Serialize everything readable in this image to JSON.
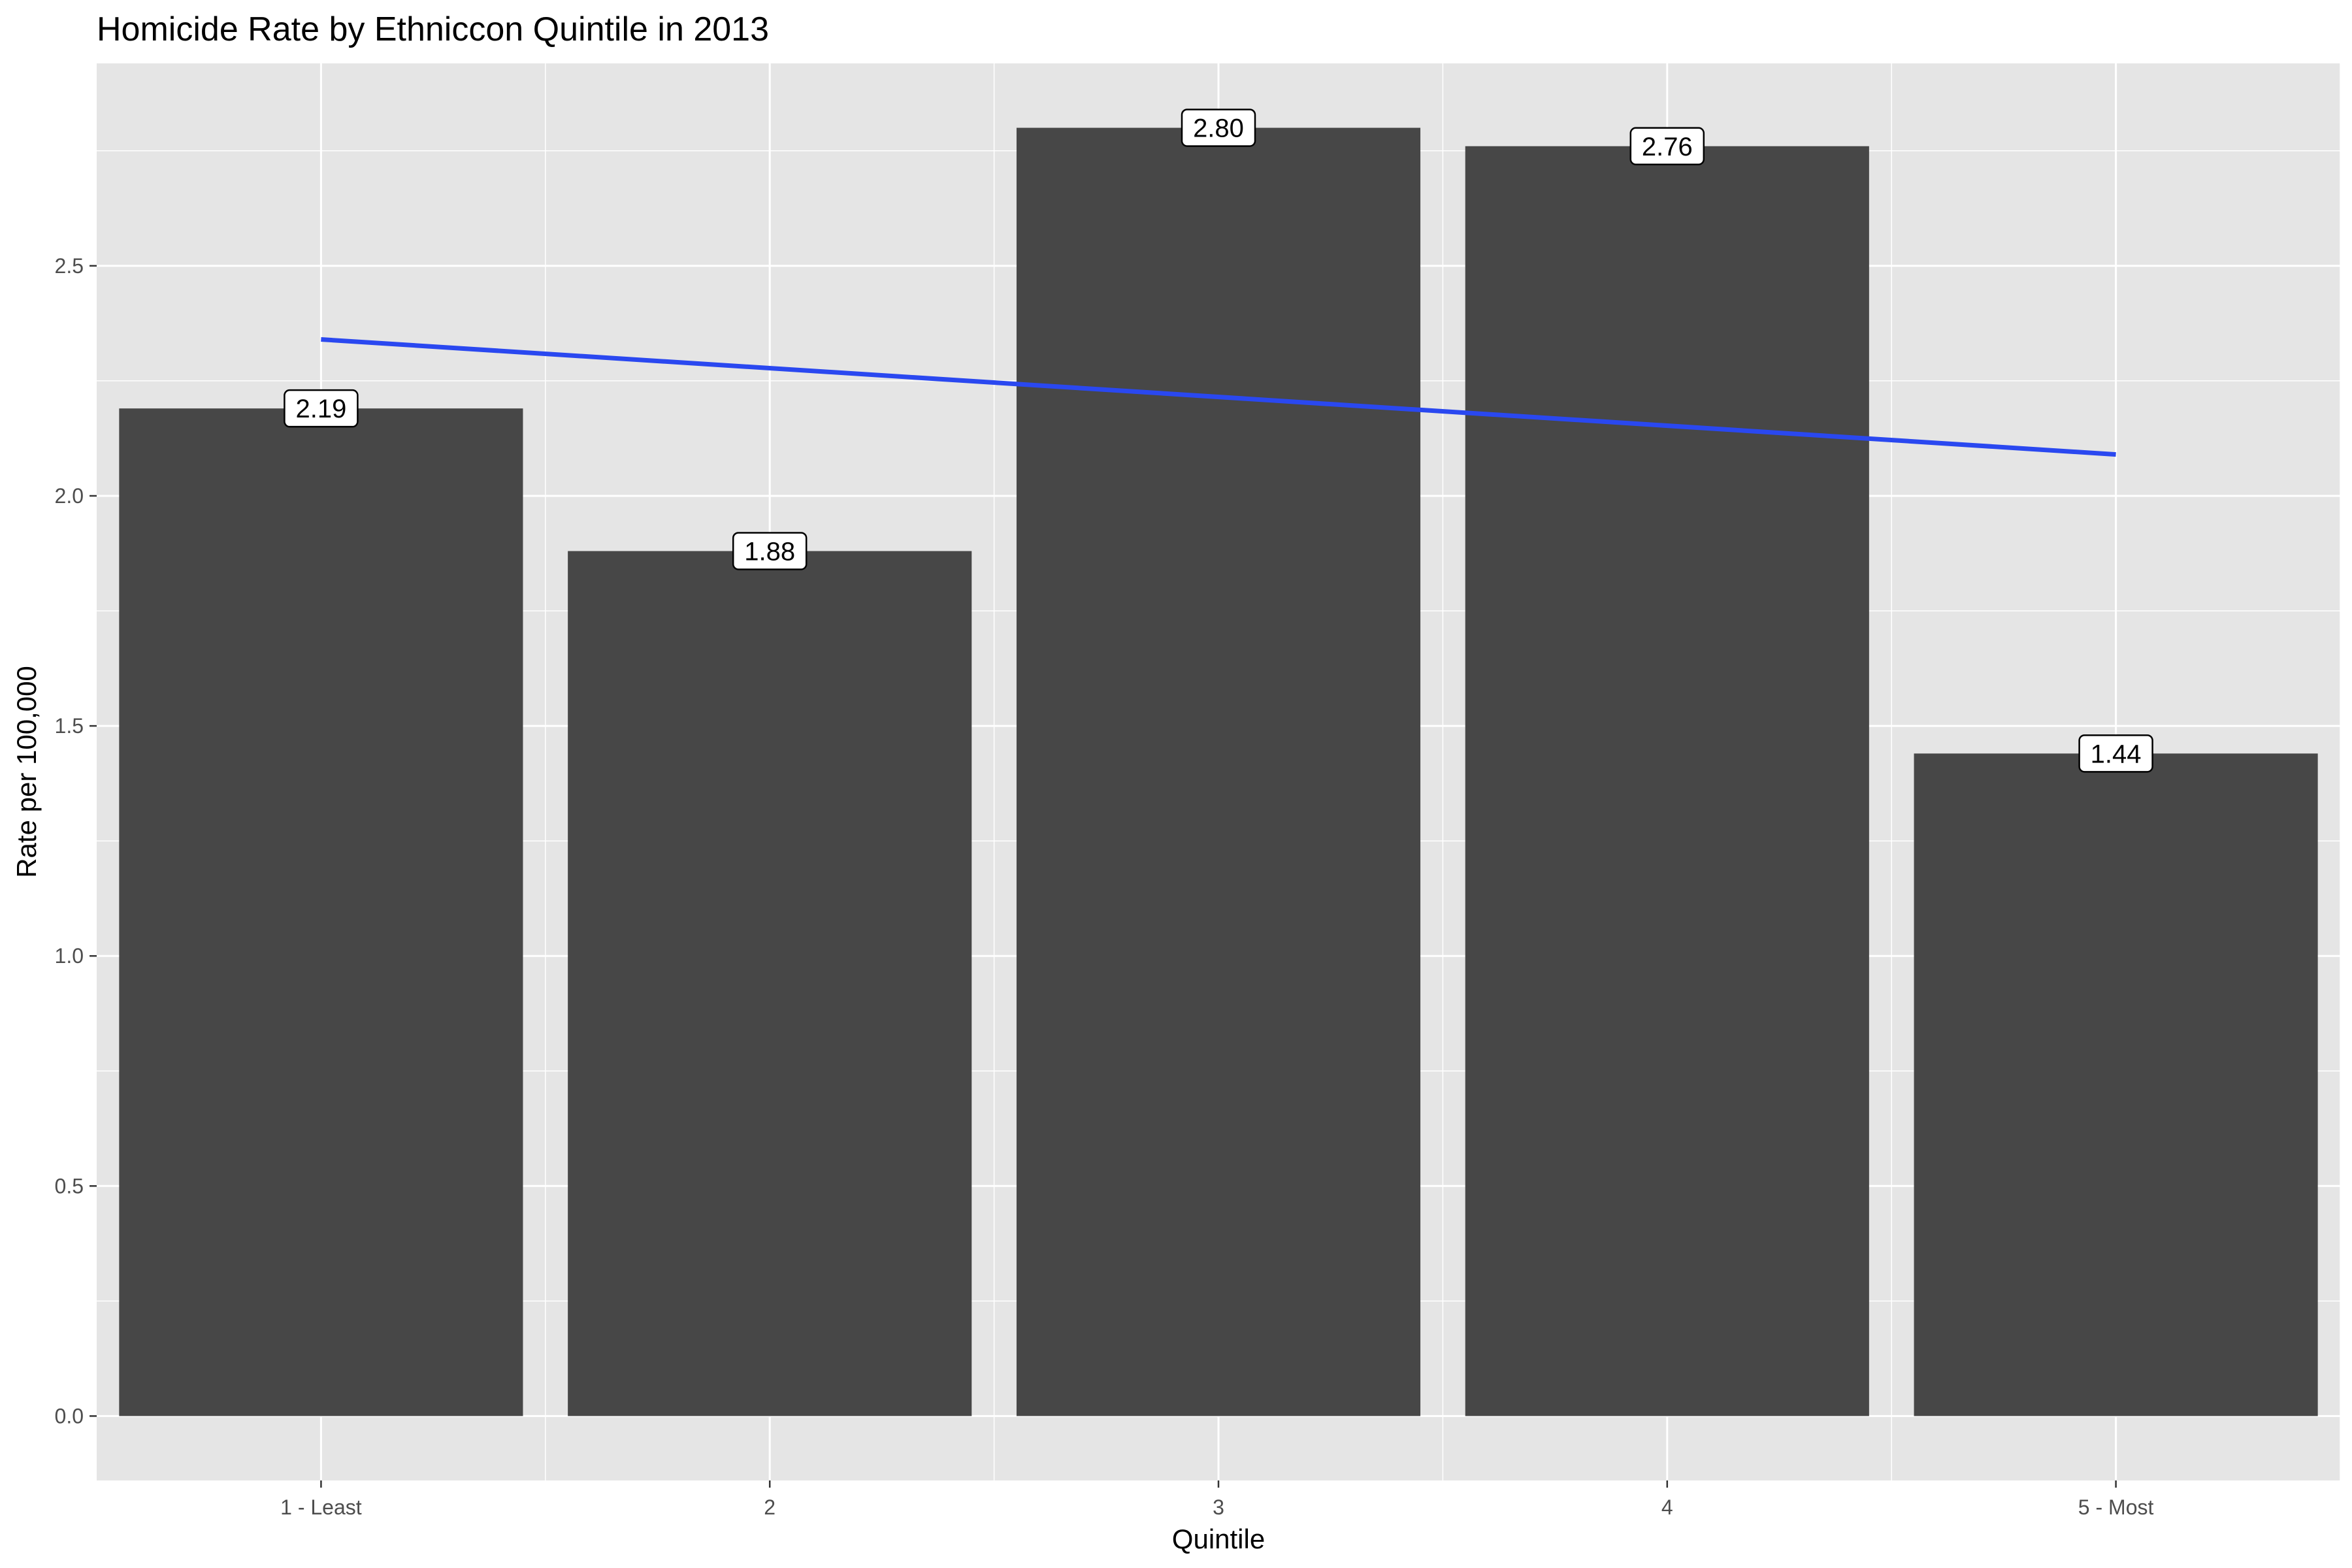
{
  "chart_data": {
    "type": "bar",
    "title": "Homicide Rate by Ethniccon Quintile in 2013",
    "xlabel": "Quintile",
    "ylabel": "Rate per 100,000",
    "categories": [
      "1 - Least",
      "2",
      "3",
      "4",
      "5 - Most"
    ],
    "values": [
      2.19,
      1.88,
      2.8,
      2.76,
      1.44
    ],
    "data_labels": [
      "2.19",
      "1.88",
      "2.80",
      "2.76",
      "1.44"
    ],
    "y_ticks": [
      0.0,
      0.5,
      1.0,
      1.5,
      2.0,
      2.5
    ],
    "y_tick_labels": [
      "0.0",
      "0.5",
      "1.0",
      "1.5",
      "2.0",
      "2.5"
    ],
    "ylim": [
      -0.14,
      2.94
    ],
    "trend_line": {
      "type": "linear",
      "start": 2.34,
      "end": 2.09
    },
    "grid": true,
    "colors": {
      "panel_background": "#e5e5e5",
      "gridlines": "#ffffff",
      "bars": "#474747",
      "trend_line": "#2a48f0",
      "label_fill": "#ffffff",
      "label_border": "#000000"
    }
  }
}
